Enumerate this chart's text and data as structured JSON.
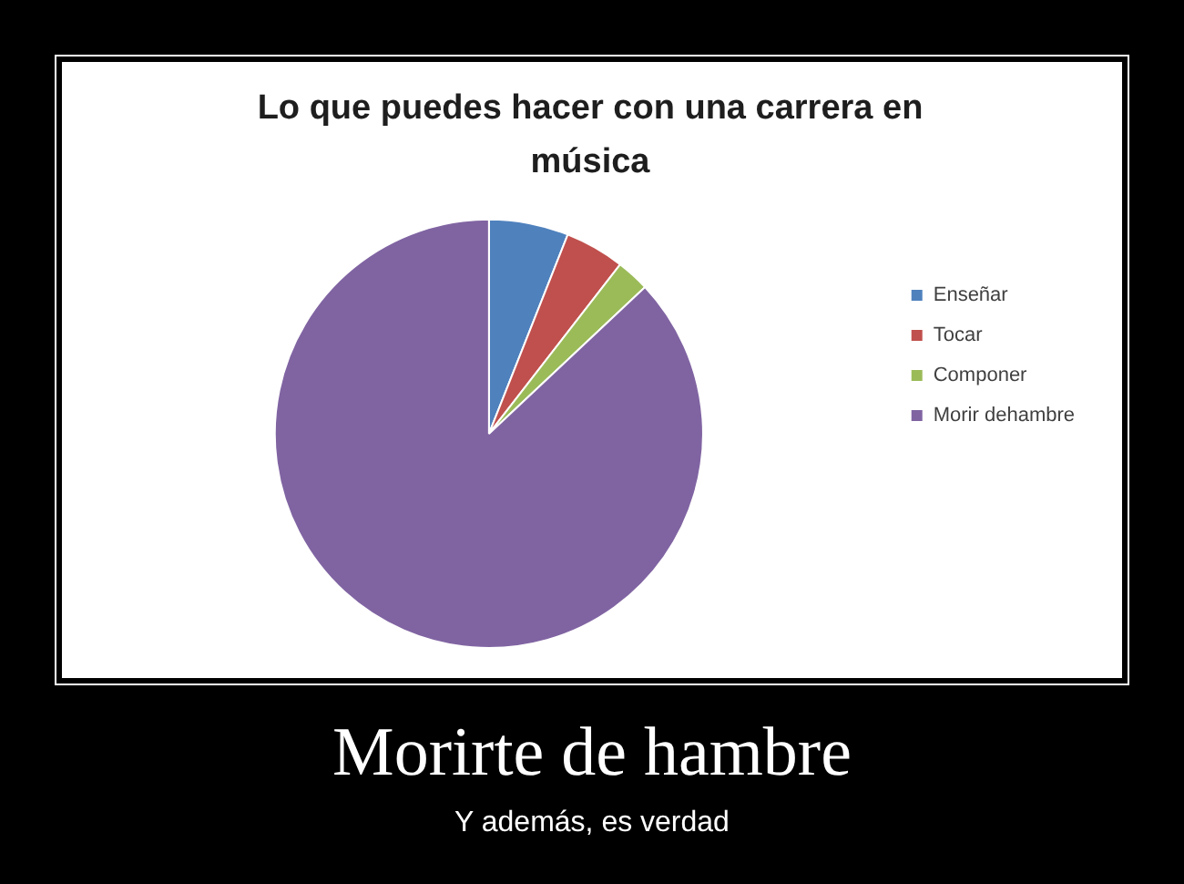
{
  "chart_data": {
    "type": "pie",
    "title": "Lo que puedes hacer con una carrera en música",
    "categories": [
      "Enseñar",
      "Tocar",
      "Componer",
      "Morir dehambre"
    ],
    "values": [
      6,
      4.5,
      2.5,
      87
    ],
    "colors": [
      "#4f81bd",
      "#c0504d",
      "#9bbb59",
      "#8064a2"
    ],
    "legend": "right",
    "annotations": [
      "Morirte de hambre",
      "Y además, es verdad"
    ]
  }
}
